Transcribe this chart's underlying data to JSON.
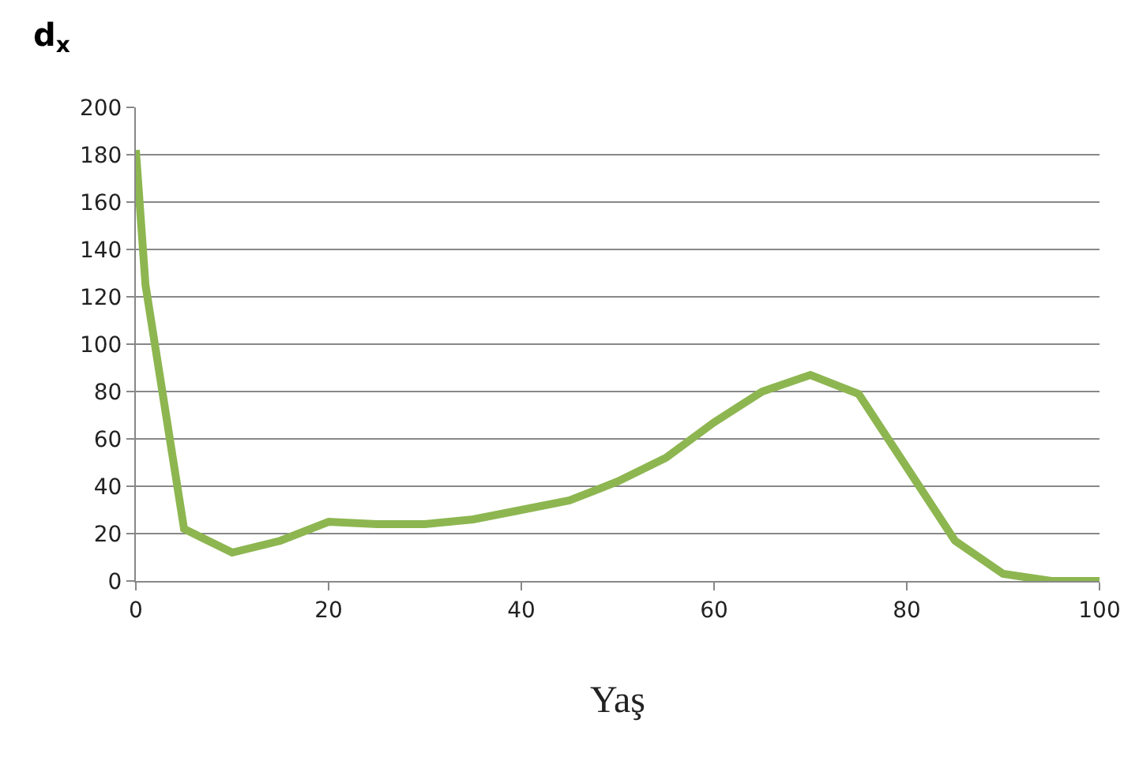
{
  "chart_data": {
    "type": "line",
    "ylabel": "d$_{x}$",
    "xlabel": "Yaş",
    "x": [
      0,
      1,
      5,
      10,
      15,
      20,
      25,
      30,
      35,
      40,
      45,
      50,
      55,
      60,
      65,
      70,
      75,
      80,
      85,
      90,
      95,
      100
    ],
    "series": [
      {
        "color": "#8db650",
        "values": [
          182,
          125,
          22,
          12,
          17,
          25,
          24,
          24,
          26,
          30,
          34,
          42,
          52,
          67,
          80,
          87,
          79,
          48,
          17,
          3,
          0,
          0
        ]
      }
    ],
    "xlim": [
      0,
      100
    ],
    "xticks": [
      0,
      20,
      40,
      60,
      80,
      100
    ],
    "ylim": [
      0,
      200
    ],
    "yticks": [
      0,
      20,
      40,
      60,
      80,
      100,
      120,
      140,
      160,
      180,
      200
    ],
    "grid": "y",
    "legend": false,
    "marker": "none",
    "line_style": "solid"
  }
}
